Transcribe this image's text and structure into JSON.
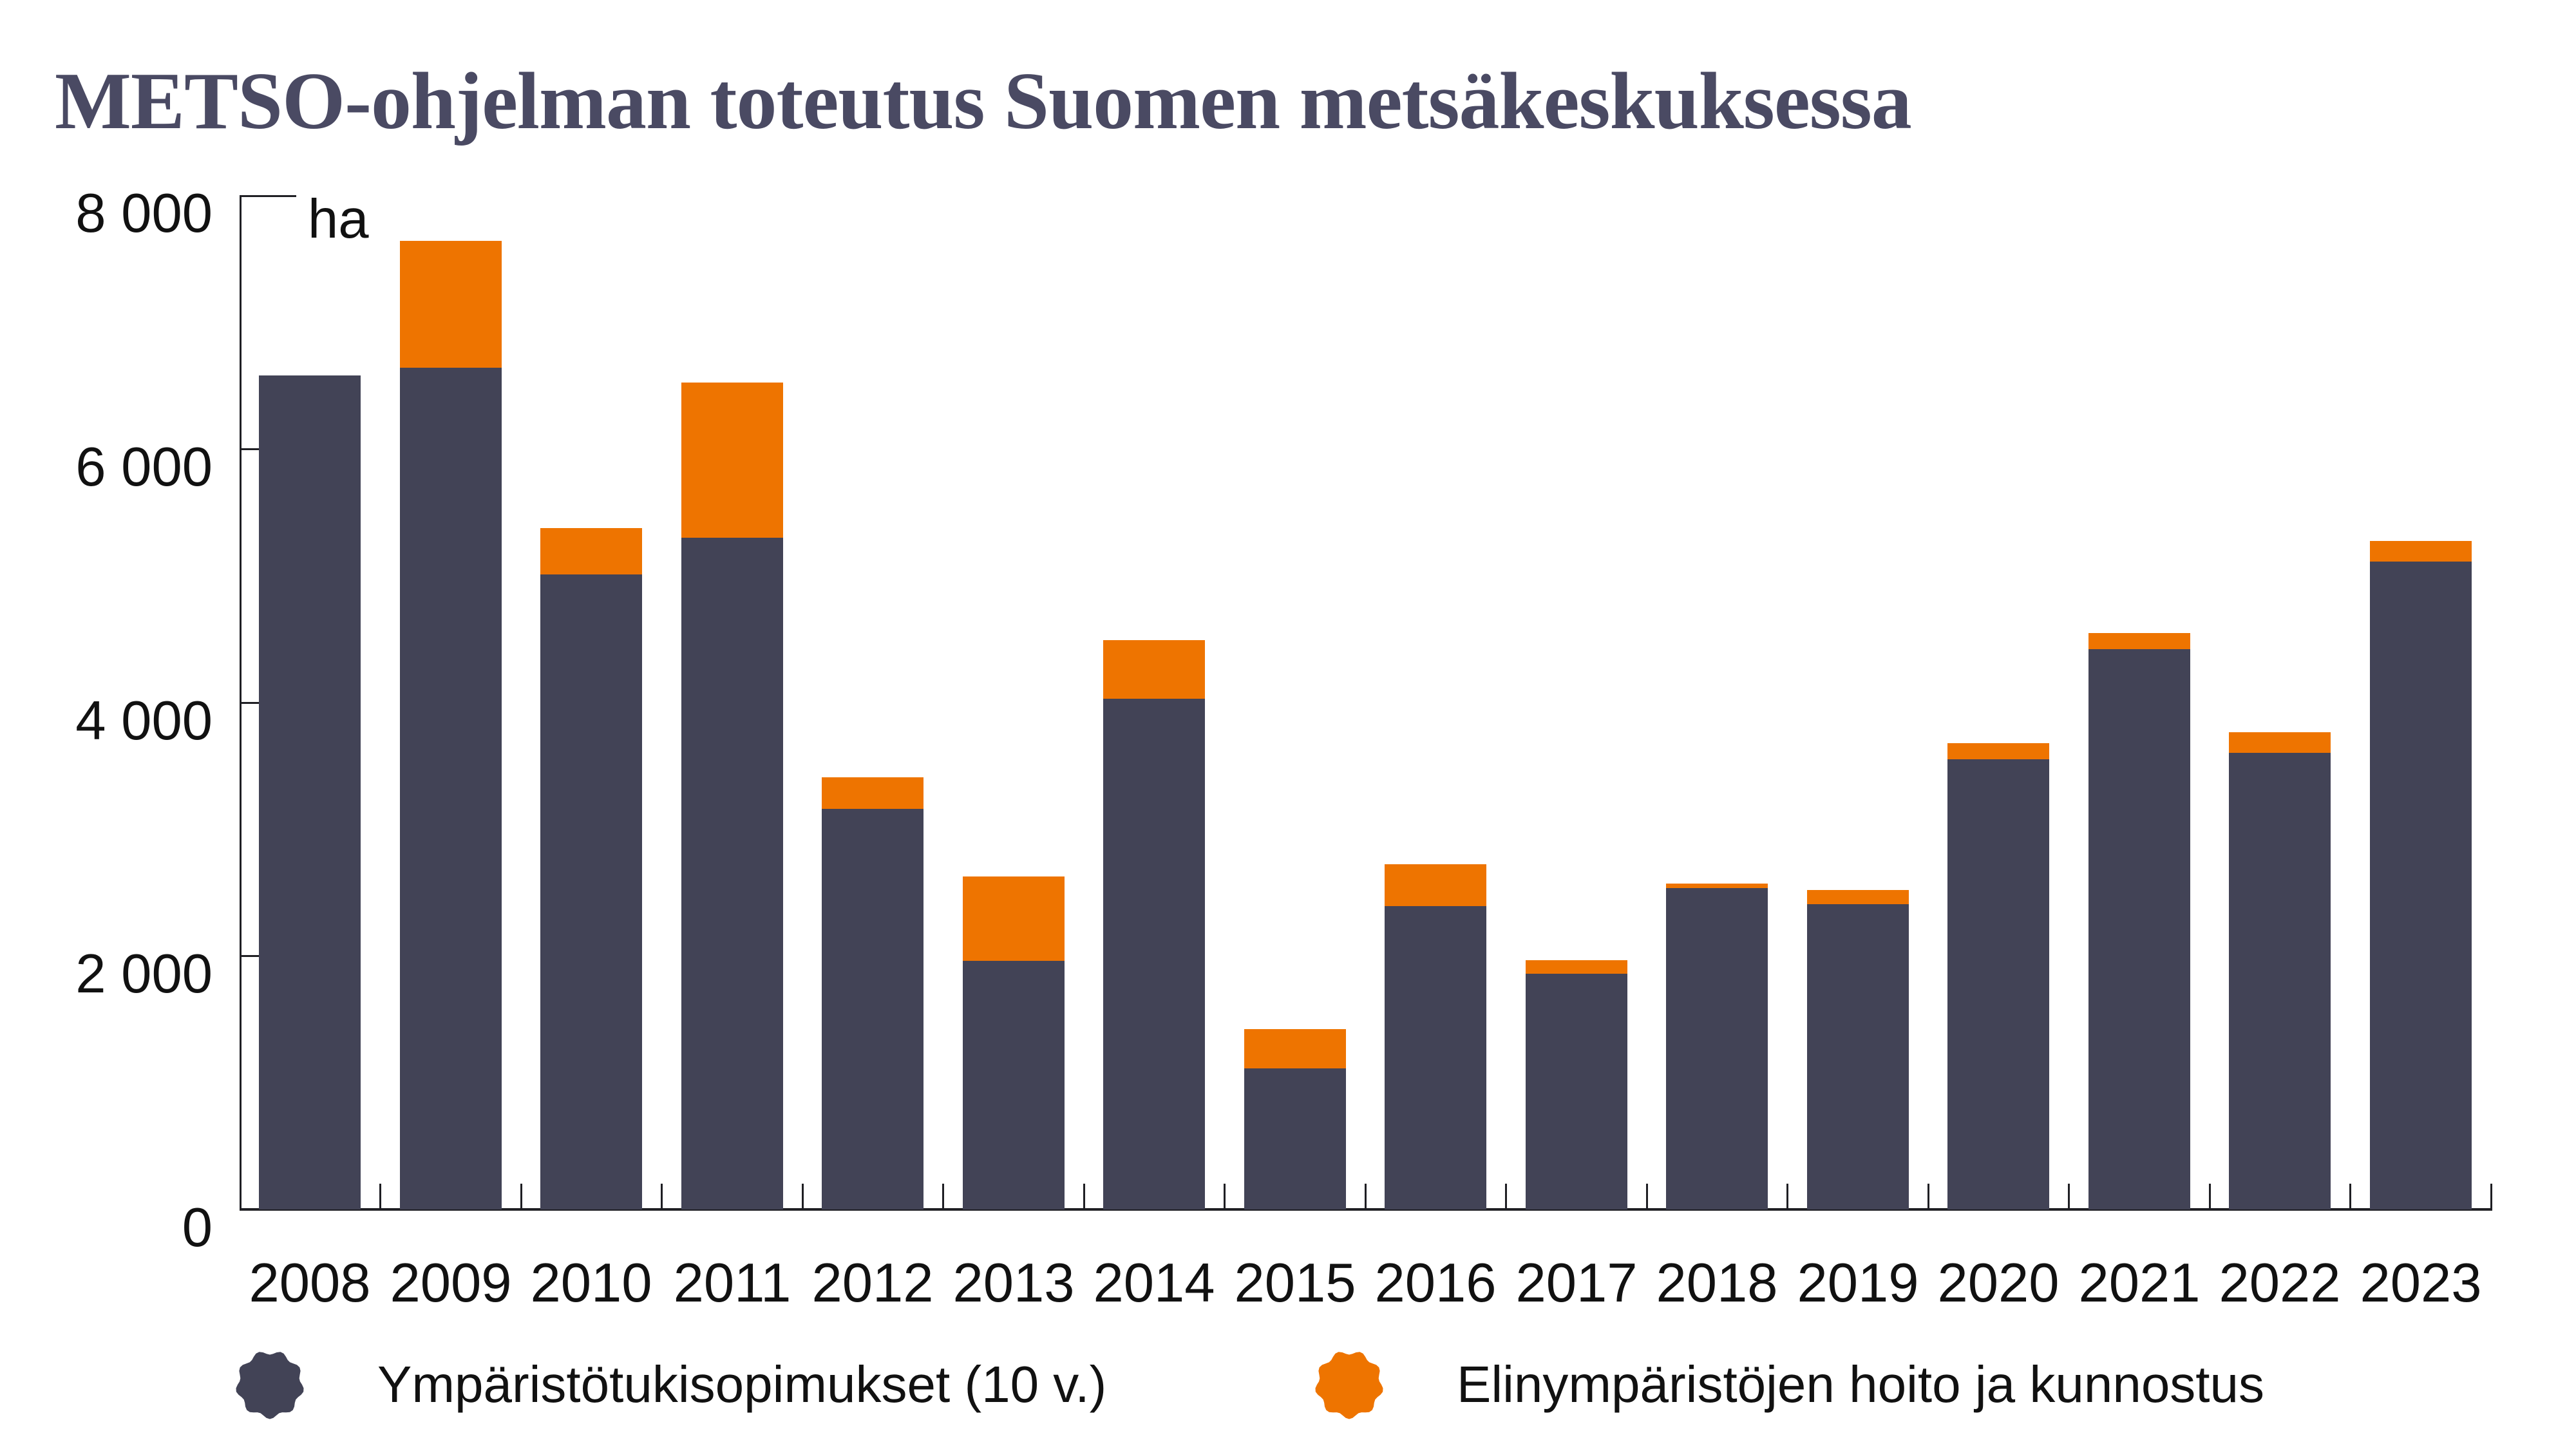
{
  "title": "METSO-ohjelman toteutus Suomen metsäkeskuksessa",
  "colors": {
    "title": "#4a4a63",
    "axis": "#1f1f24",
    "tick_text": "#111111",
    "series_dark": "#424356",
    "series_orange": "#ee7400"
  },
  "chart_data": {
    "type": "bar",
    "stacked": true,
    "title": "METSO-ohjelman toteutus Suomen metsäkeskuksessa",
    "unit": "ha",
    "xlabel": "",
    "ylabel": "ha",
    "ylim": [
      0,
      8000
    ],
    "yticks": [
      0,
      2000,
      4000,
      6000,
      8000
    ],
    "ytick_labels": [
      "0",
      "2 000",
      "4 000",
      "6 000",
      "8 000"
    ],
    "grid": false,
    "legend_position": "bottom",
    "categories": [
      "2008",
      "2009",
      "2010",
      "2011",
      "2012",
      "2013",
      "2014",
      "2015",
      "2016",
      "2017",
      "2018",
      "2019",
      "2020",
      "2021",
      "2022",
      "2023"
    ],
    "series": [
      {
        "name": "Ympäristötukisopimukset (10 v.)",
        "color": "#424356",
        "values": [
          6580,
          6640,
          5010,
          5300,
          3160,
          1960,
          4030,
          1110,
          2390,
          1860,
          2535,
          2410,
          3550,
          4420,
          3600,
          5110
        ]
      },
      {
        "name": "Elinympäristöjen hoito ja kunnostus",
        "color": "#ee7400",
        "values": [
          0,
          1000,
          365,
          1225,
          250,
          665,
          460,
          310,
          330,
          105,
          35,
          110,
          125,
          125,
          160,
          160
        ]
      }
    ]
  },
  "legend": {
    "items": [
      {
        "label": "Ympäristötukisopimukset (10 v.)",
        "icon": "dark-pebble-icon"
      },
      {
        "label": "Elinympäristöjen hoito ja kunnostus",
        "icon": "orange-pebble-icon"
      }
    ]
  }
}
